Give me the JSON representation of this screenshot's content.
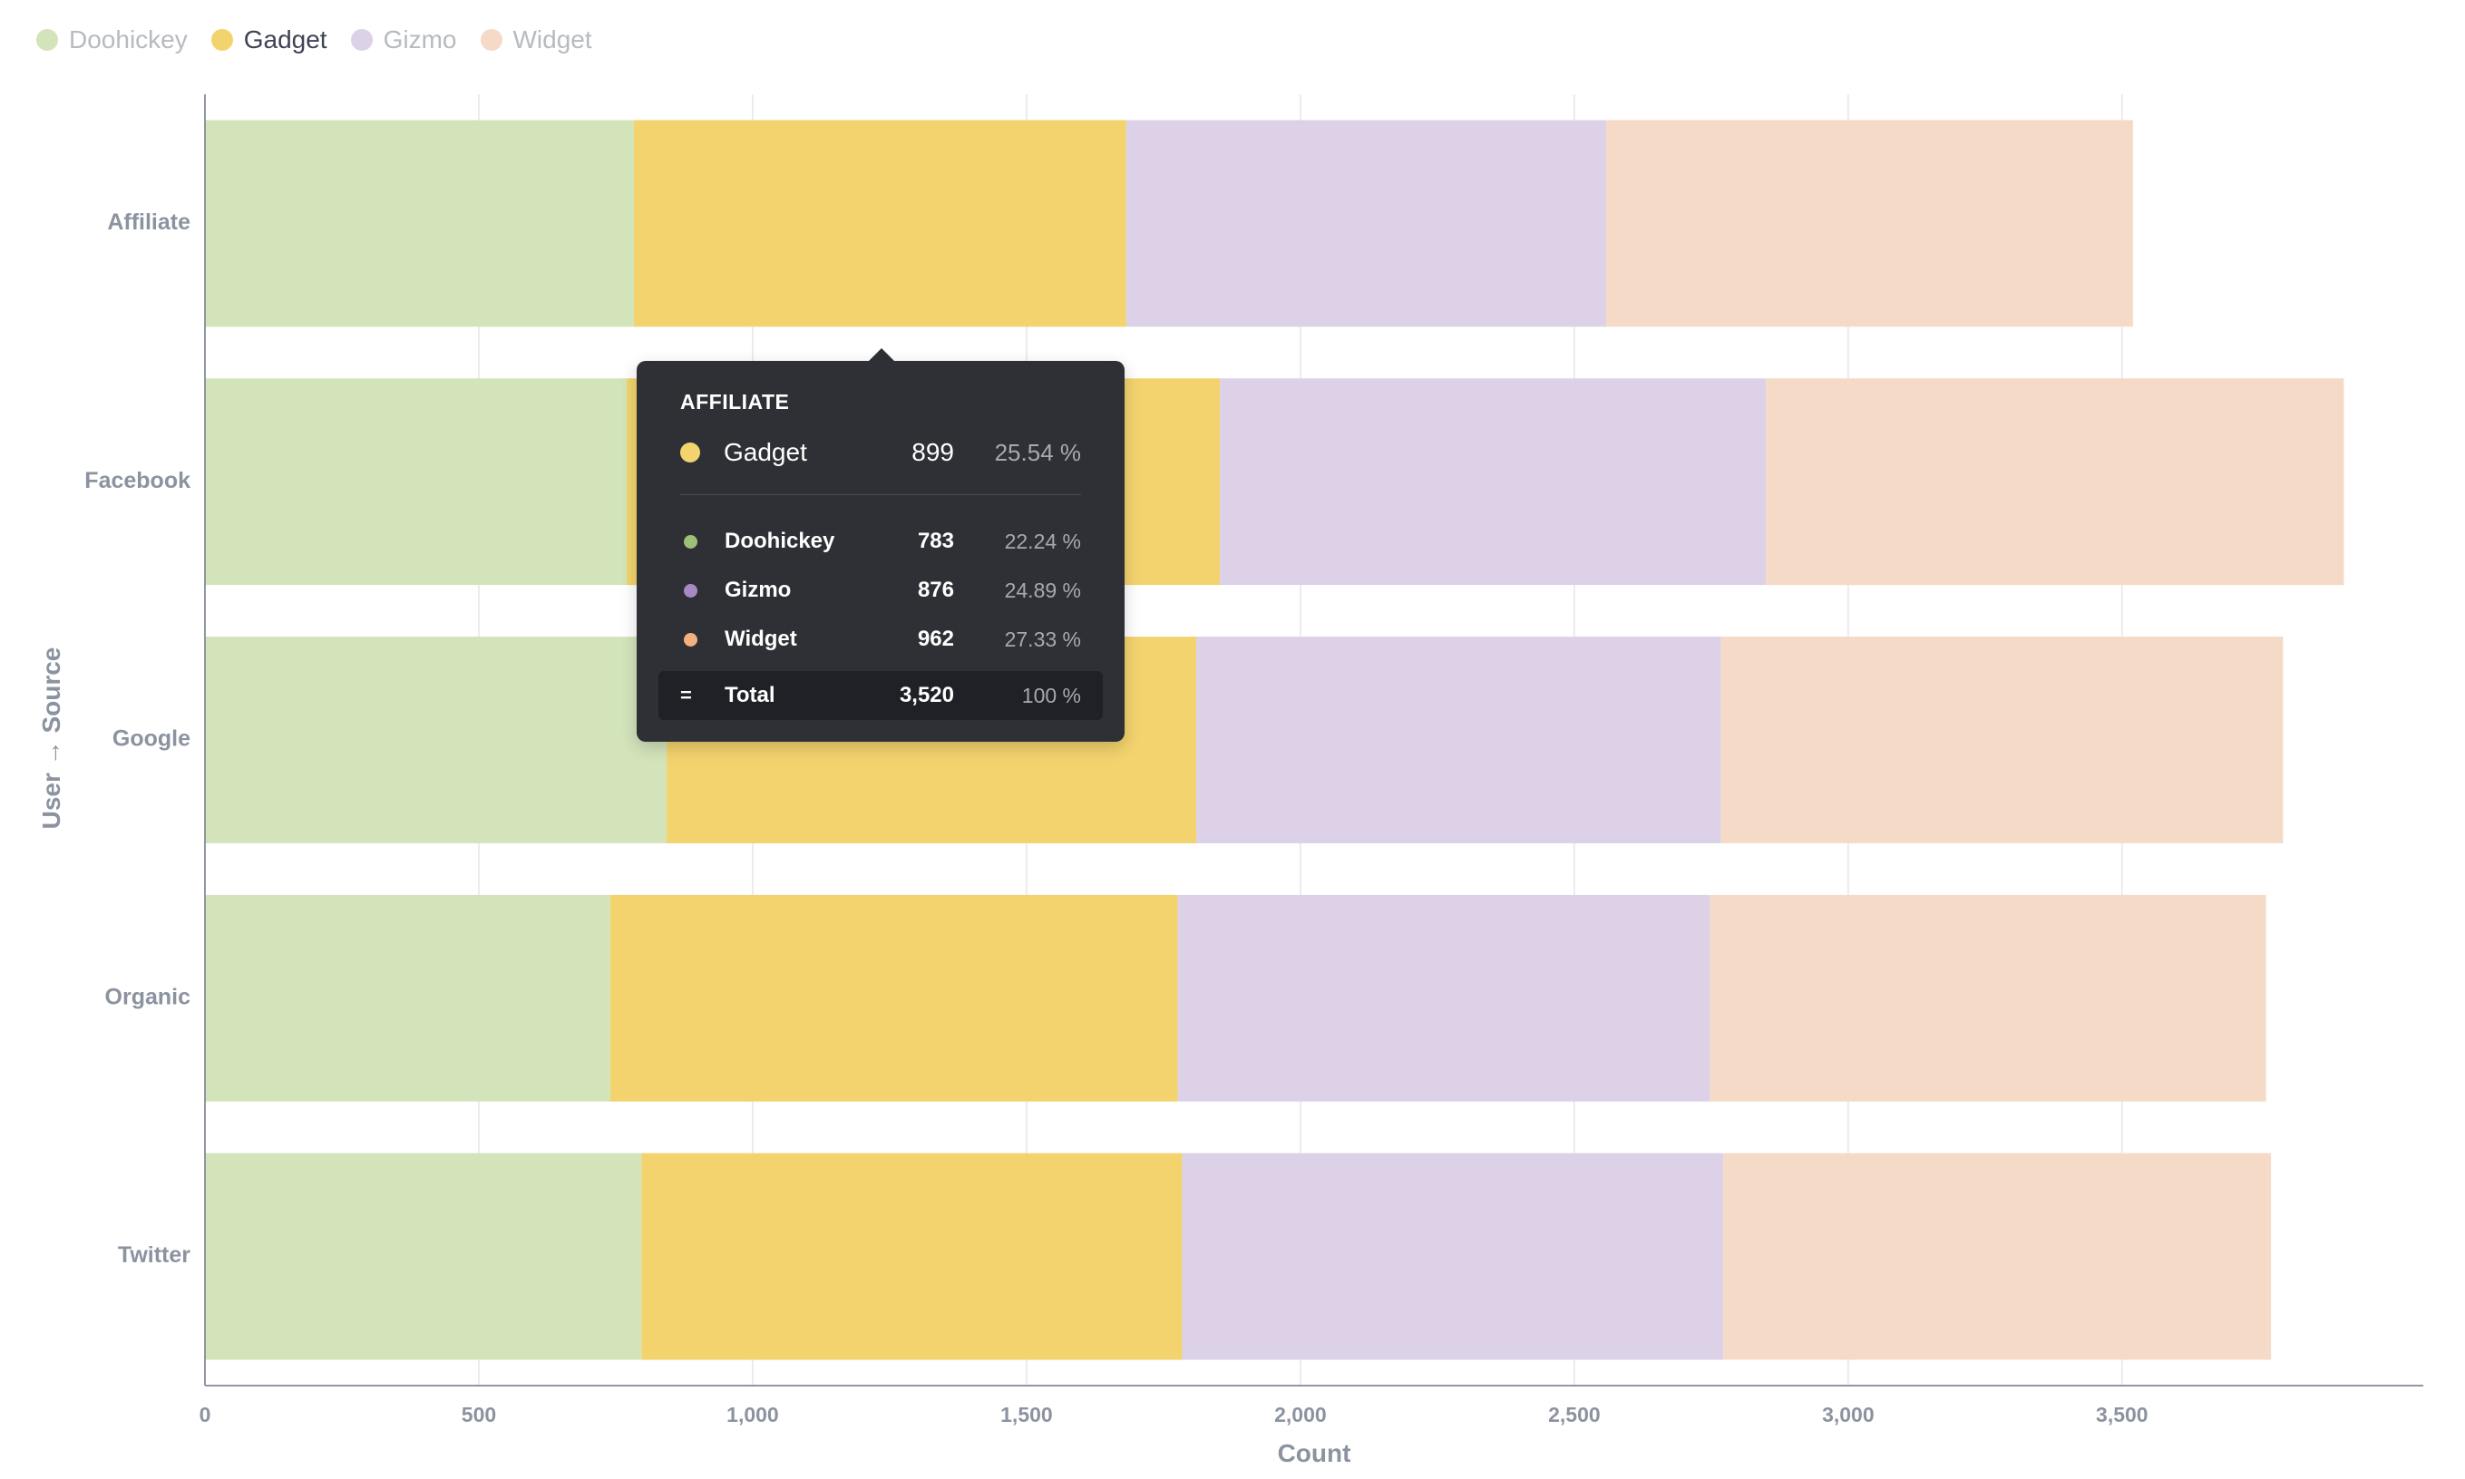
{
  "chart_data": {
    "type": "bar",
    "orientation": "horizontal",
    "stacked": true,
    "categories": [
      "Affiliate",
      "Facebook",
      "Google",
      "Organic",
      "Twitter"
    ],
    "series": [
      {
        "name": "Doohickey",
        "values": [
          783,
          770,
          843,
          740,
          797
        ],
        "color": "#d3e4bb"
      },
      {
        "name": "Gadget",
        "values": [
          899,
          1083,
          967,
          1036,
          987
        ],
        "color": "#f2d36e"
      },
      {
        "name": "Gizmo",
        "values": [
          876,
          997,
          958,
          972,
          988
        ],
        "color": "#dcd1e6"
      },
      {
        "name": "Widget",
        "values": [
          962,
          1055,
          1026,
          1015,
          1000
        ],
        "color": "#f5dbc7"
      }
    ],
    "xlabel": "Count",
    "ylabel": "User → Source",
    "xlim": [
      0,
      4050
    ],
    "xticks": [
      0,
      500,
      1000,
      1500,
      2000,
      2500,
      3000,
      3500
    ],
    "xtick_labels": [
      "0",
      "500",
      "1,000",
      "1,500",
      "2,000",
      "2,500",
      "3,000",
      "3,500"
    ],
    "grid": true,
    "legend_position": "top-left"
  },
  "legend": {
    "items": [
      {
        "name": "Doohickey",
        "color": "#d3e4bb",
        "text_color": "#b7babf"
      },
      {
        "name": "Gadget",
        "color": "#f2d36e",
        "text_color": "#3e4354"
      },
      {
        "name": "Gizmo",
        "color": "#dcd1e6",
        "text_color": "#b7babf"
      },
      {
        "name": "Widget",
        "color": "#f5dbc7",
        "text_color": "#b7babf"
      }
    ]
  },
  "tooltip": {
    "title": "AFFILIATE",
    "hovered": {
      "name": "Gadget",
      "value": "899",
      "percent": "25.54 %",
      "dot_color": "#f2d36e"
    },
    "rows": [
      {
        "name": "Doohickey",
        "value": "783",
        "percent": "22.24 %",
        "dot_color": "#9cc177"
      },
      {
        "name": "Gizmo",
        "value": "876",
        "percent": "24.89 %",
        "dot_color": "#a989c5"
      },
      {
        "name": "Widget",
        "value": "962",
        "percent": "27.33 %",
        "dot_color": "#f1b07d"
      }
    ],
    "total": {
      "symbol": "=",
      "label": "Total",
      "value": "3,520",
      "percent": "100 %"
    }
  }
}
